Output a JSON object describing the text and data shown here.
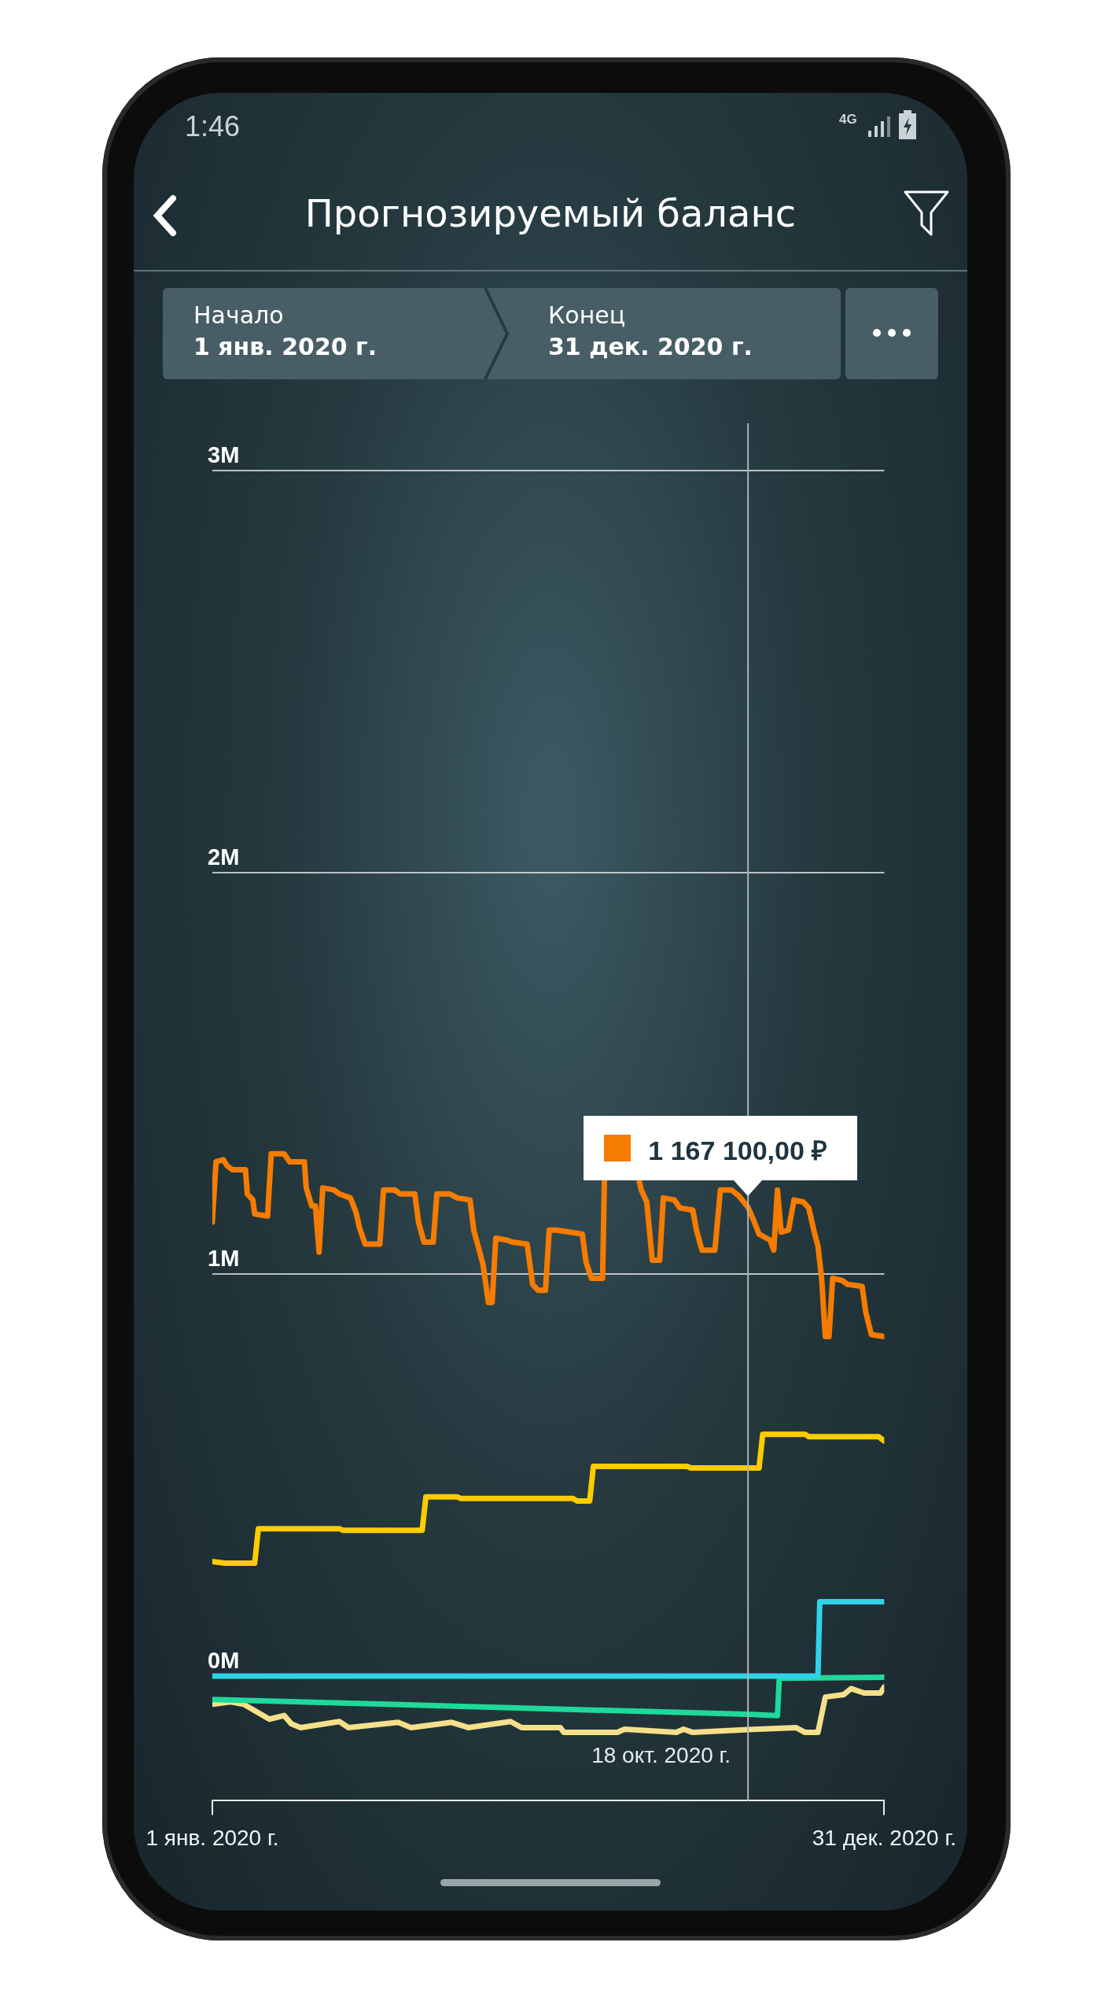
{
  "chart_data": {
    "type": "line",
    "title": "Прогнозируемый баланс",
    "annotations": [
      "1:46",
      "4G",
      "Начало",
      "1 янв. 2020 г.",
      "Конец",
      "31 дек. 2020 г.",
      {
        "text": "1 167 100,00 ₽",
        "x": "2020-10-18",
        "y": 1.1671
      }
    ],
    "xlim": [
      "2020-01-01",
      "2020-12-31"
    ],
    "xticks": [
      {
        "value": "2020-01-01",
        "label": "1 янв. 2020 г."
      },
      {
        "value": "2020-12-31",
        "label": "31 дек. 2020 г."
      }
    ],
    "ylim": [
      -0.31,
      3
    ],
    "yticks": [
      {
        "value": 0,
        "label": "0M"
      },
      {
        "value": 1,
        "label": "1M"
      },
      {
        "value": 2,
        "label": "2M"
      },
      {
        "value": 3,
        "label": "3M"
      }
    ],
    "grid": "y",
    "legend": false,
    "marker": "none",
    "line_style": "solid",
    "ref_lines": [
      {
        "axis": "x",
        "value": "2020-10-18",
        "label": "18 окт. 2020 г.",
        "color": "#aab4ba"
      }
    ],
    "series": [
      {
        "color": "#f57c00",
        "x": [
          "2020-01-01",
          "2020-01-03",
          "2020-01-07",
          "2020-01-09",
          "2020-01-12",
          "2020-01-19",
          "2020-01-20",
          "2020-01-23",
          "2020-01-24",
          "2020-01-31",
          "2020-02-02",
          "2020-02-09",
          "2020-02-12",
          "2020-02-20",
          "2020-02-21",
          "2020-02-24",
          "2020-02-26",
          "2020-02-28",
          "2020-03-01",
          "2020-03-07",
          "2020-03-10",
          "2020-03-16",
          "2020-03-19",
          "2020-03-21",
          "2020-03-24",
          "2020-04-01",
          "2020-04-03",
          "2020-04-09",
          "2020-04-12",
          "2020-04-20",
          "2020-04-22",
          "2020-04-25",
          "2020-04-30",
          "2020-05-02",
          "2020-05-09",
          "2020-05-13",
          "2020-05-20",
          "2020-05-22",
          "2020-05-25",
          "2020-05-27",
          "2020-05-30",
          "2020-06-01",
          "2020-06-03",
          "2020-06-09",
          "2020-06-12",
          "2020-06-20",
          "2020-06-23",
          "2020-06-26",
          "2020-06-30",
          "2020-07-02",
          "2020-07-06",
          "2020-07-20",
          "2020-07-22",
          "2020-07-25",
          "2020-07-31",
          "2020-08-01",
          "2020-08-11",
          "2020-08-20",
          "2020-08-21",
          "2020-08-24",
          "2020-08-27",
          "2020-08-31",
          "2020-09-02",
          "2020-09-08",
          "2020-09-11",
          "2020-09-18",
          "2020-09-20",
          "2020-09-23",
          "2020-09-30",
          "2020-10-03",
          "2020-10-09",
          "2020-10-13",
          "2020-10-18",
          "2020-10-21",
          "2020-10-24",
          "2020-10-30",
          "2020-11-01",
          "2020-11-03",
          "2020-11-05",
          "2020-11-09",
          "2020-11-12",
          "2020-11-17",
          "2020-11-20",
          "2020-11-23",
          "2020-11-25",
          "2020-11-27",
          "2020-11-29",
          "2020-12-01",
          "2020-12-03",
          "2020-12-08",
          "2020-12-11",
          "2020-12-19",
          "2020-12-21",
          "2020-12-24",
          "2020-12-31"
        ],
        "values": [
          1.13,
          1.28,
          1.285,
          1.27,
          1.26,
          1.26,
          1.2,
          1.185,
          1.15,
          1.145,
          1.3,
          1.3,
          1.28,
          1.28,
          1.215,
          1.17,
          1.17,
          1.055,
          1.215,
          1.21,
          1.2,
          1.19,
          1.155,
          1.115,
          1.075,
          1.075,
          1.21,
          1.21,
          1.2,
          1.2,
          1.13,
          1.08,
          1.08,
          1.2,
          1.2,
          1.19,
          1.185,
          1.11,
          1.06,
          1.025,
          0.93,
          0.93,
          1.09,
          1.085,
          1.08,
          1.075,
          0.975,
          0.96,
          0.96,
          1.11,
          1.11,
          1.1,
          1.03,
          0.99,
          0.99,
          1.235,
          null,
          1.23,
          1.21,
          1.18,
          1.035,
          1.035,
          1.19,
          1.185,
          1.165,
          1.16,
          1.11,
          1.06,
          1.06,
          1.21,
          1.21,
          1.195,
          1.167,
          1.135,
          1.1,
          1.085,
          1.06,
          1.21,
          1.105,
          1.11,
          1.185,
          1.18,
          1.165,
          1.105,
          1.07,
          0.99,
          0.845,
          0.845,
          0.99,
          0.985,
          0.975,
          0.97,
          0.905,
          0.85,
          0.845
        ]
      },
      {
        "color": "#ffcc00",
        "x": [
          "2020-01-01",
          "2020-01-08",
          "2020-01-24",
          "2020-01-26",
          "2020-03-10",
          "2020-03-12",
          "2020-04-24",
          "2020-04-26",
          "2020-05-13",
          "2020-05-15",
          "2020-07-15",
          "2020-07-17",
          "2020-07-24",
          "2020-07-26",
          "2020-09-15",
          "2020-09-17",
          "2020-10-24",
          "2020-10-26",
          "2020-11-18",
          "2020-11-20",
          "2020-12-28",
          "2020-12-31"
        ],
        "values": [
          0.285,
          0.281,
          0.281,
          0.367,
          0.367,
          0.363,
          0.363,
          0.446,
          0.446,
          0.442,
          0.442,
          0.436,
          0.436,
          0.522,
          0.522,
          0.518,
          0.518,
          0.602,
          0.602,
          0.596,
          0.596,
          0.585
        ]
      },
      {
        "color": "#2fd3e8",
        "x": [
          "2020-01-01",
          "2020-11-25",
          "2020-11-26",
          "2020-12-31"
        ],
        "values": [
          0,
          0,
          0.185,
          0.185
        ]
      },
      {
        "color": "#1ed99a",
        "x": [
          "2020-01-01",
          "2020-10-18",
          "2020-11-03",
          "2020-11-04",
          "2020-12-31"
        ],
        "values": [
          -0.058,
          -0.095,
          -0.098,
          -0.005,
          -0.003
        ]
      },
      {
        "color": "#f5e08a",
        "x": [
          "2020-01-01",
          "2020-01-11",
          "2020-01-18",
          "2020-02-01",
          "2020-02-09",
          "2020-02-13",
          "2020-02-18",
          "2020-03-10",
          "2020-03-15",
          "2020-04-11",
          "2020-04-18",
          "2020-05-10",
          "2020-05-19",
          "2020-06-11",
          "2020-06-17",
          "2020-07-08",
          "2020-07-10",
          "2020-08-08",
          "2020-08-12",
          "2020-09-09",
          "2020-09-13",
          "2020-09-18",
          "2020-10-18",
          "2020-11-13",
          "2020-11-18",
          "2020-11-25",
          "2020-11-29",
          "2020-12-09",
          "2020-12-13",
          "2020-12-20",
          "2020-12-29",
          "2020-12-31"
        ],
        "values": [
          -0.07,
          -0.064,
          -0.07,
          -0.107,
          -0.098,
          -0.119,
          -0.128,
          -0.113,
          -0.128,
          -0.115,
          -0.128,
          -0.115,
          -0.128,
          -0.113,
          -0.128,
          -0.128,
          -0.14,
          -0.14,
          -0.132,
          -0.14,
          -0.132,
          -0.14,
          -0.133,
          -0.128,
          -0.14,
          -0.14,
          -0.052,
          -0.046,
          -0.031,
          -0.042,
          -0.042,
          -0.027
        ]
      }
    ]
  }
}
